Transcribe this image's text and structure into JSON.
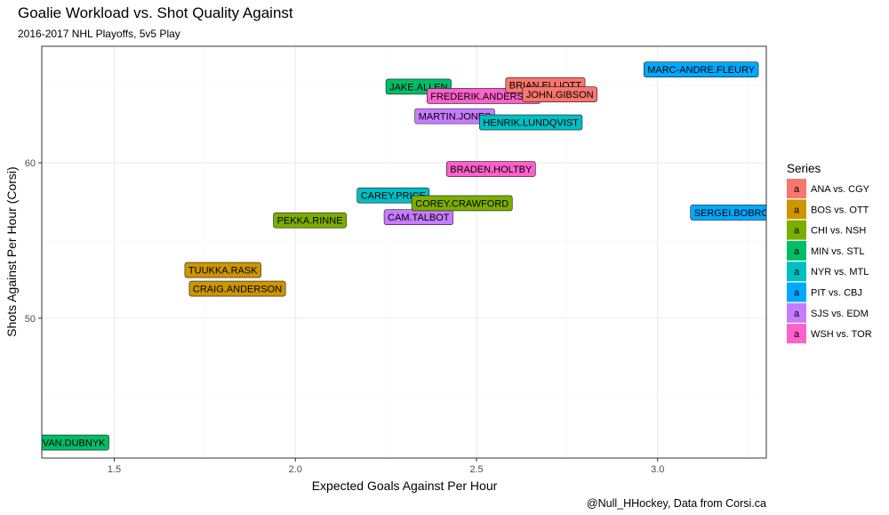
{
  "chart_data": {
    "type": "scatter",
    "title": "Goalie Workload vs. Shot Quality Against",
    "subtitle": "2016-2017 NHL Playoffs, 5v5 Play",
    "xlabel": "Expected Goals Against Per Hour",
    "ylabel": "Shots Against Per Hour (Corsi)",
    "caption": "@Null_HHockey, Data from Corsi.ca",
    "xlim": [
      1.3,
      3.3
    ],
    "ylim": [
      41.0,
      67.5
    ],
    "x_ticks": [
      1.5,
      2.0,
      2.5,
      3.0
    ],
    "x_tick_labels": [
      "1.5",
      "2.0",
      "2.5",
      "3.0"
    ],
    "y_ticks": [
      50,
      60
    ],
    "y_tick_labels": [
      "50",
      "60"
    ],
    "grid": true,
    "legend": {
      "title": "Series",
      "position": "right",
      "key_glyph": "a",
      "entries": [
        {
          "name": "ANA vs. CGY",
          "color": "#F8766D"
        },
        {
          "name": "BOS vs. OTT",
          "color": "#CD9600"
        },
        {
          "name": "CHI vs. NSH",
          "color": "#7CAE00"
        },
        {
          "name": "MIN vs. STL",
          "color": "#00BE67"
        },
        {
          "name": "NYR vs. MTL",
          "color": "#00BFC4"
        },
        {
          "name": "PIT vs. CBJ",
          "color": "#00A9FF"
        },
        {
          "name": "SJS vs. EDM",
          "color": "#C77CFF"
        },
        {
          "name": "WSH vs. TOR",
          "color": "#FF61CC"
        }
      ]
    },
    "points": [
      {
        "label": "MARC-ANDRE.FLEURY",
        "series": "PIT vs. CBJ",
        "x": 3.12,
        "y": 66.0
      },
      {
        "label": "SERGEI.BOBROVSKY",
        "series": "PIT vs. CBJ",
        "x": 3.24,
        "y": 56.8
      },
      {
        "label": "JAKE.ALLEN",
        "series": "MIN vs. STL",
        "x": 2.34,
        "y": 64.9
      },
      {
        "label": "DEVAN.DUBNYK",
        "series": "MIN vs. STL",
        "x": 1.37,
        "y": 42.0
      },
      {
        "label": "FREDERIK.ANDERSEN",
        "series": "WSH vs. TOR",
        "x": 2.52,
        "y": 64.3
      },
      {
        "label": "BRADEN.HOLTBY",
        "series": "WSH vs. TOR",
        "x": 2.54,
        "y": 59.6
      },
      {
        "label": "BRIAN.ELLIOTT",
        "series": "ANA vs. CGY",
        "x": 2.69,
        "y": 65.0
      },
      {
        "label": "JOHN.GIBSON",
        "series": "ANA vs. CGY",
        "x": 2.73,
        "y": 64.4
      },
      {
        "label": "MARTIN.JONES",
        "series": "SJS vs. EDM",
        "x": 2.44,
        "y": 63.0
      },
      {
        "label": "CAM.TALBOT",
        "series": "SJS vs. EDM",
        "x": 2.34,
        "y": 56.5
      },
      {
        "label": "HENRIK.LUNDQVIST",
        "series": "NYR vs. MTL",
        "x": 2.65,
        "y": 62.6
      },
      {
        "label": "CAREY.PRICE",
        "series": "NYR vs. MTL",
        "x": 2.27,
        "y": 57.9
      },
      {
        "label": "COREY.CRAWFORD",
        "series": "CHI vs. NSH",
        "x": 2.46,
        "y": 57.4
      },
      {
        "label": "PEKKA.RINNE",
        "series": "CHI vs. NSH",
        "x": 2.04,
        "y": 56.3
      },
      {
        "label": "TUUKKA.RASK",
        "series": "BOS vs. OTT",
        "x": 1.8,
        "y": 53.1
      },
      {
        "label": "CRAIG.ANDERSON",
        "series": "BOS vs. OTT",
        "x": 1.84,
        "y": 51.9
      }
    ]
  }
}
